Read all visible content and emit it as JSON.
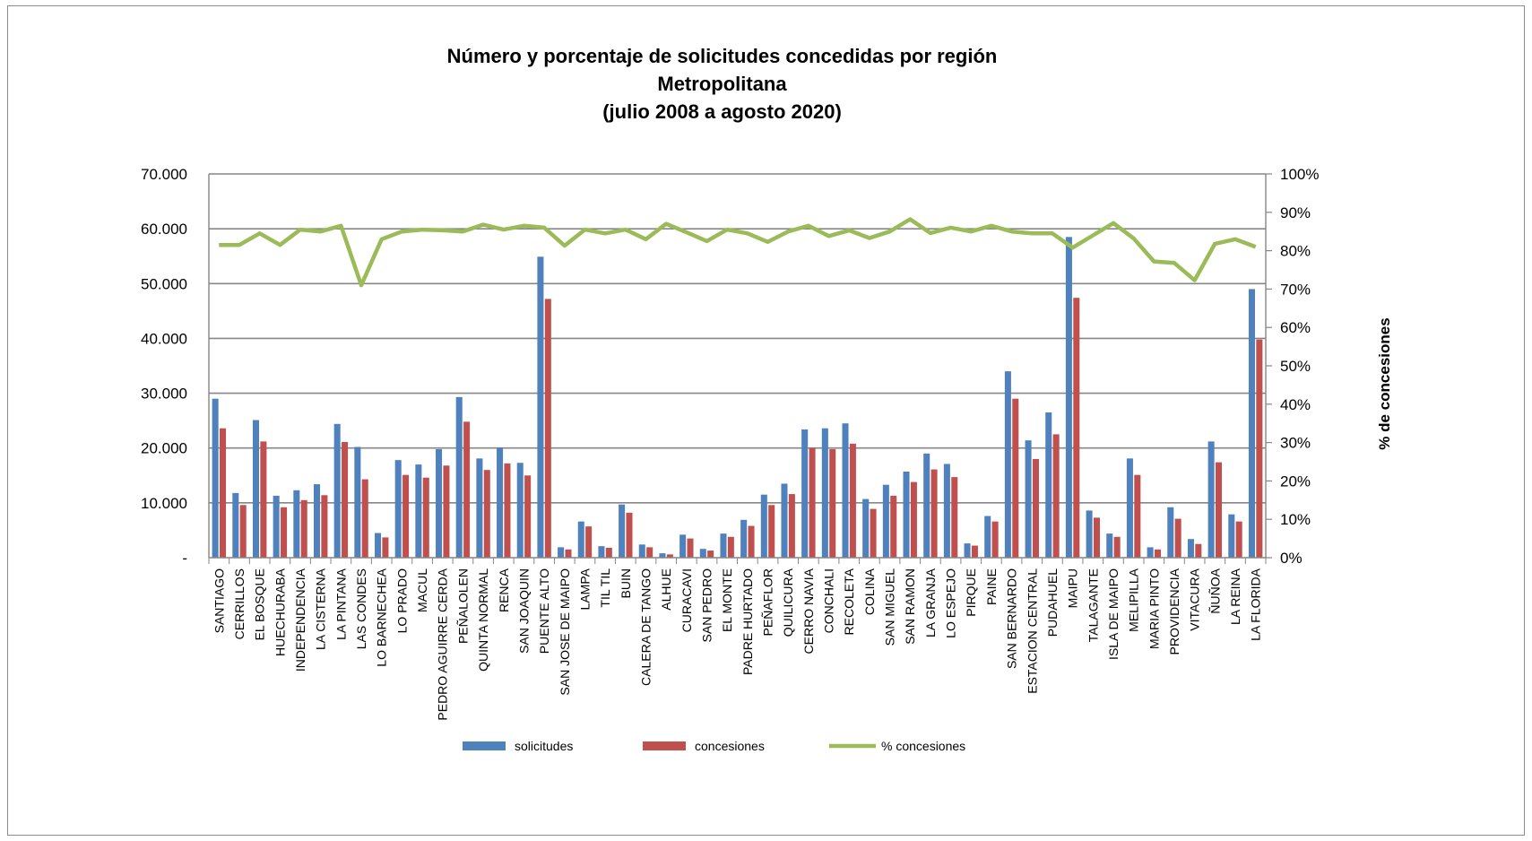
{
  "chart_data": {
    "type": "bar",
    "title": [
      "Número y porcentaje de solicitudes concedidas por región",
      "Metropolitana",
      "(julio 2008 a agosto 2020)"
    ],
    "categories": [
      "SANTIAGO",
      "CERRILLOS",
      "EL BOSQUE",
      "HUECHURABA",
      "INDEPENDENCIA",
      "LA CISTERNA",
      "LA PINTANA",
      "LAS CONDES",
      "LO BARNECHEA",
      "LO PRADO",
      "MACUL",
      "PEDRO AGUIRRE CERDA",
      "PEÑALOLEN",
      "QUINTA NORMAL",
      "RENCA",
      "SAN JOAQUIN",
      "PUENTE ALTO",
      "SAN JOSE DE MAIPO",
      "LAMPA",
      "TIL TIL",
      "BUIN",
      "CALERA DE TANGO",
      "ALHUE",
      "CURACAVI",
      "SAN PEDRO",
      "EL MONTE",
      "PADRE HURTADO",
      "PEÑAFLOR",
      "QUILICURA",
      "CERRO NAVIA",
      "CONCHALI",
      "RECOLETA",
      "COLINA",
      "SAN MIGUEL",
      "SAN RAMON",
      "LA GRANJA",
      "LO ESPEJO",
      "PIRQUE",
      "PAINE",
      "SAN BERNARDO",
      "ESTACION CENTRAL",
      "PUDAHUEL",
      "MAIPU",
      "TALAGANTE",
      "ISLA DE MAIPO",
      "MELIPILLA",
      "MARIA PINTO",
      "PROVIDENCIA",
      "VITACURA",
      "ÑUÑOA",
      "LA REINA",
      "LA FLORIDA"
    ],
    "series": [
      {
        "name": "solicitudes",
        "axis": "left",
        "kind": "bar",
        "values": [
          29000,
          11800,
          25100,
          11300,
          12300,
          13400,
          24400,
          20200,
          4500,
          17800,
          17000,
          19800,
          29300,
          18100,
          20100,
          17300,
          54900,
          1900,
          6600,
          2100,
          9700,
          2400,
          800,
          4200,
          1600,
          4400,
          6900,
          11500,
          13500,
          23400,
          23600,
          24500,
          10700,
          13300,
          15700,
          19000,
          17100,
          2600,
          7600,
          34000,
          21400,
          26500,
          58500,
          8600,
          4400,
          18100,
          1900,
          9200,
          3400,
          21200,
          7900,
          49000
        ]
      },
      {
        "name": "concesiones",
        "axis": "left",
        "kind": "bar",
        "values": [
          23600,
          9600,
          21200,
          9200,
          10500,
          11400,
          21100,
          14300,
          3700,
          15100,
          14600,
          16800,
          24800,
          16000,
          17200,
          15000,
          47200,
          1500,
          5700,
          1800,
          8200,
          1900,
          600,
          3500,
          1300,
          3800,
          5800,
          9600,
          11600,
          20000,
          19800,
          20800,
          8900,
          11300,
          13800,
          16100,
          14700,
          2200,
          6600,
          29000,
          18000,
          22500,
          47400,
          7300,
          3800,
          15100,
          1500,
          7100,
          2500,
          17400,
          6600,
          39800
        ]
      },
      {
        "name": "% concesiones",
        "axis": "right",
        "kind": "line",
        "values": [
          81.5,
          81.5,
          84.5,
          81.5,
          85.5,
          85,
          86.5,
          71,
          83,
          85,
          85.5,
          85.3,
          85,
          86.8,
          85.5,
          86.5,
          86,
          81.3,
          85.5,
          84.5,
          85.5,
          83,
          87,
          84.8,
          82.5,
          85.5,
          84.5,
          82.3,
          85,
          86.5,
          83.8,
          85.3,
          83.3,
          85,
          88.2,
          84.6,
          86,
          85,
          86.5,
          85,
          84.5,
          84.5,
          80.8,
          84,
          87.2,
          83.2,
          77.2,
          76.8,
          72.3,
          81.8,
          83,
          81
        ]
      }
    ],
    "y_left": {
      "ticks": [
        0,
        10000,
        20000,
        30000,
        40000,
        50000,
        60000,
        70000
      ],
      "tick_labels": [
        "-",
        "10.000",
        "20.000",
        "30.000",
        "40.000",
        "50.000",
        "60.000",
        "70.000"
      ],
      "ylim": [
        0,
        70000
      ]
    },
    "y_right": {
      "label": "% de concesiones",
      "ticks": [
        0,
        10,
        20,
        30,
        40,
        50,
        60,
        70,
        80,
        90,
        100
      ],
      "tick_labels": [
        "0%",
        "10%",
        "20%",
        "30%",
        "40%",
        "50%",
        "60%",
        "70%",
        "80%",
        "90%",
        "100%"
      ],
      "ylim": [
        0,
        100
      ]
    },
    "grid": true,
    "legend": {
      "placement": "bottom-center",
      "entries": [
        "solicitudes",
        "concesiones",
        "% concesiones"
      ]
    },
    "colors": {
      "solicitudes": "#4f81bd",
      "concesiones": "#c0504d",
      "% concesiones": "#9bbb59",
      "grid": "#868686"
    }
  }
}
